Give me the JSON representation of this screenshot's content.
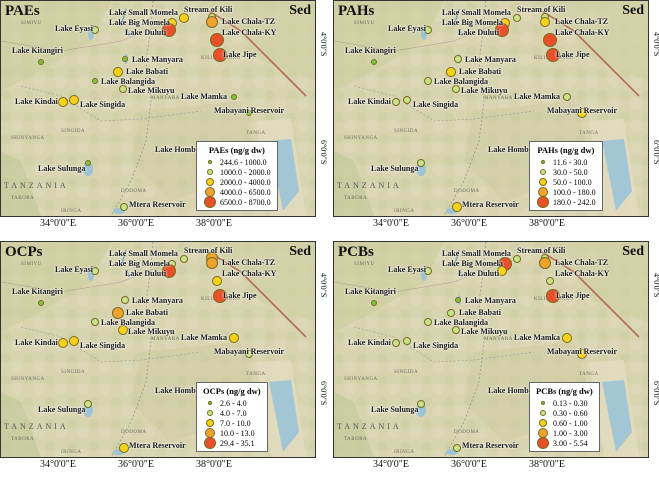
{
  "panels": [
    {
      "id": "pae",
      "title": "PAEs",
      "tag": "Sed",
      "legend_title": "PAEs (ng/g dw)",
      "legend": [
        "244.6 - 1000.0",
        "1000.0 - 2000.0",
        "2000.0 - 4000.0",
        "4000.0 - 6500.0",
        "6500.0 - 8700.0"
      ],
      "xticks": [
        "34°0'0\"E",
        "36°0'0\"E",
        "38°0'0\"E"
      ],
      "yticks": [
        "4°0'0\"S",
        "6°0'0\"S"
      ],
      "class_by_site": {
        "Small Momela": 2,
        "Big Momela": 2,
        "Duluti": 4,
        "Kili": 1,
        "Chala-TZ": 3,
        "Chala-KY": 4,
        "Jipe": 4,
        "Eyasi": 1,
        "Kitangiri": 0,
        "Manyara": 0,
        "Babati": 2,
        "Balangida": 0,
        "Kindai": 2,
        "Singida": 2,
        "Mikuyu": 1,
        "Mamka": 0,
        "Mabayani": 0,
        "Sulunga": 0,
        "Mtera": 1
      }
    },
    {
      "id": "pah",
      "title": "PAHs",
      "tag": "Sed",
      "legend_title": "PAHs (ng/g dw)",
      "legend": [
        "11.6 - 30.0",
        "30.0 - 50.0",
        "50.0 - 100.0",
        "100.0 - 180.0",
        "180.0 - 242.0"
      ],
      "xticks": [
        "34°0'0\"E",
        "36°0'0\"E",
        "38°0'0\"E"
      ],
      "yticks": [
        "4°0'0\"S",
        "6°0'0\"S"
      ],
      "class_by_site": {
        "Small Momela": 1,
        "Big Momela": 2,
        "Duluti": 4,
        "Kili": 1,
        "Chala-TZ": 2,
        "Chala-KY": 4,
        "Jipe": 4,
        "Eyasi": 1,
        "Kitangiri": 0,
        "Manyara": 1,
        "Babati": 2,
        "Balangida": 1,
        "Kindai": 1,
        "Singida": 1,
        "Mikuyu": 1,
        "Mamka": 1,
        "Mabayani": 2,
        "Sulunga": 1,
        "Mtera": 2
      }
    },
    {
      "id": "ocp",
      "title": "OCPs",
      "tag": "Sed",
      "legend_title": "OCPs (ng/g dw)",
      "legend": [
        "2.6 - 4.0",
        "4.0 - 7.0",
        "7.0 - 10.0",
        "10.0 - 13.0",
        "29.4 - 35.1"
      ],
      "xticks": [
        "34°0'0\"E",
        "36°0'0\"E",
        "38°0'0\"E"
      ],
      "yticks": [
        "4°0'0\"S",
        "6°0'0\"S"
      ],
      "class_by_site": {
        "Small Momela": 1,
        "Big Momela": 1,
        "Duluti": 4,
        "Kili": 3,
        "Chala-TZ": 3,
        "Chala-KY": 2,
        "Jipe": 4,
        "Eyasi": 1,
        "Kitangiri": 0,
        "Manyara": 1,
        "Babati": 3,
        "Balangida": 1,
        "Kindai": 2,
        "Singida": 2,
        "Mikuyu": 2,
        "Mamka": 2,
        "Mabayani": 1,
        "Sulunga": 1,
        "Mtera": 2
      }
    },
    {
      "id": "pcb",
      "title": "PCBs",
      "tag": "Sed",
      "legend_title": "PCBs (ng/g dw)",
      "legend": [
        "0.13 - 0.30",
        "0.30 - 0.60",
        "0.60 - 1.00",
        "1.00 - 3.00",
        "3.00 - 5.54"
      ],
      "xticks": [
        "34°0'0\"E",
        "36°0'0\"E",
        "38°0'0\"E"
      ],
      "yticks": [
        "4°0'0\"S",
        "6°0'0\"S"
      ],
      "class_by_site": {
        "Small Momela": 1,
        "Big Momela": 4,
        "Duluti": 2,
        "Kili": 1,
        "Chala-TZ": 3,
        "Chala-KY": 1,
        "Jipe": 4,
        "Eyasi": 1,
        "Kitangiri": 0,
        "Manyara": 0,
        "Babati": 1,
        "Balangida": 1,
        "Kindai": 1,
        "Singida": 1,
        "Mikuyu": 1,
        "Mamka": 2,
        "Mabayani": 2,
        "Sulunga": 1,
        "Mtera": 1
      }
    }
  ],
  "site_labels": {
    "Small Momela": "Lake Small Momela",
    "Big Momela": "Lake Big Momela",
    "Duluti": "Lake Duluti",
    "Kili": "Stream of Kili",
    "Chala-TZ": "Lake Chala-TZ",
    "Chala-KY": "Lake Chala-KY",
    "Jipe": "Lake Jipe",
    "Eyasi": "Lake Eyasi",
    "Kitangiri": "Lake Kitangiri",
    "Manyara": "Lake Manyara",
    "Babati": "Lake Babati",
    "Balangida": "Lake Balangida",
    "Kindai": "Lake Kindai",
    "Singida": "Lake Singida",
    "Mikuyu": "Lake Mikuyu",
    "Mamka": "Lake Mamka",
    "Mabayani": "Mabayani Reservoir",
    "Sulunga": "Lake Sulunga",
    "Hombolo": "Lake Hombolo",
    "Mtera": "Mtera Reservoir"
  },
  "map_text": {
    "tanzania": "TANZANIA",
    "regions": [
      "MANYARA",
      "SINGIDA",
      "DODOMA",
      "TANGA",
      "KILIMANJARO",
      "SIMIYU",
      "SHINYANGA",
      "TABORA",
      "IRINGA"
    ]
  },
  "colors": [
    "#7cc43c",
    "#c8e38a",
    "#f5d21a",
    "#f0a32c",
    "#e8502a"
  ]
}
